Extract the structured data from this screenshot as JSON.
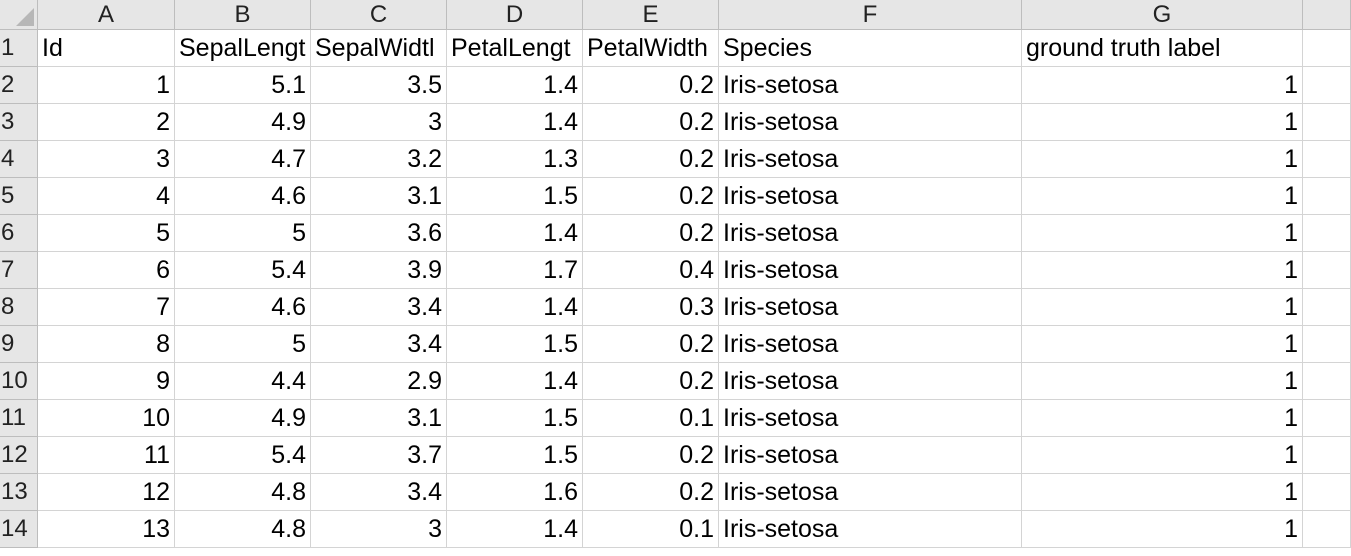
{
  "columns": [
    "A",
    "B",
    "C",
    "D",
    "E",
    "F",
    "G"
  ],
  "header_row": {
    "row_label": "1",
    "cells": [
      "Id",
      "SepalLengt",
      "SepalWidtl",
      "PetalLengt",
      "PetalWidth",
      "Species",
      "ground truth label"
    ]
  },
  "rows": [
    {
      "label": "2",
      "cells": [
        "1",
        "5.1",
        "3.5",
        "1.4",
        "0.2",
        "Iris-setosa",
        "1"
      ]
    },
    {
      "label": "3",
      "cells": [
        "2",
        "4.9",
        "3",
        "1.4",
        "0.2",
        "Iris-setosa",
        "1"
      ]
    },
    {
      "label": "4",
      "cells": [
        "3",
        "4.7",
        "3.2",
        "1.3",
        "0.2",
        "Iris-setosa",
        "1"
      ]
    },
    {
      "label": "5",
      "cells": [
        "4",
        "4.6",
        "3.1",
        "1.5",
        "0.2",
        "Iris-setosa",
        "1"
      ]
    },
    {
      "label": "6",
      "cells": [
        "5",
        "5",
        "3.6",
        "1.4",
        "0.2",
        "Iris-setosa",
        "1"
      ]
    },
    {
      "label": "7",
      "cells": [
        "6",
        "5.4",
        "3.9",
        "1.7",
        "0.4",
        "Iris-setosa",
        "1"
      ]
    },
    {
      "label": "8",
      "cells": [
        "7",
        "4.6",
        "3.4",
        "1.4",
        "0.3",
        "Iris-setosa",
        "1"
      ]
    },
    {
      "label": "9",
      "cells": [
        "8",
        "5",
        "3.4",
        "1.5",
        "0.2",
        "Iris-setosa",
        "1"
      ]
    },
    {
      "label": "10",
      "cells": [
        "9",
        "4.4",
        "2.9",
        "1.4",
        "0.2",
        "Iris-setosa",
        "1"
      ]
    },
    {
      "label": "11",
      "cells": [
        "10",
        "4.9",
        "3.1",
        "1.5",
        "0.1",
        "Iris-setosa",
        "1"
      ]
    },
    {
      "label": "12",
      "cells": [
        "11",
        "5.4",
        "3.7",
        "1.5",
        "0.2",
        "Iris-setosa",
        "1"
      ]
    },
    {
      "label": "13",
      "cells": [
        "12",
        "4.8",
        "3.4",
        "1.6",
        "0.2",
        "Iris-setosa",
        "1"
      ]
    },
    {
      "label": "14",
      "cells": [
        "13",
        "4.8",
        "3",
        "1.4",
        "0.1",
        "Iris-setosa",
        "1"
      ]
    }
  ]
}
